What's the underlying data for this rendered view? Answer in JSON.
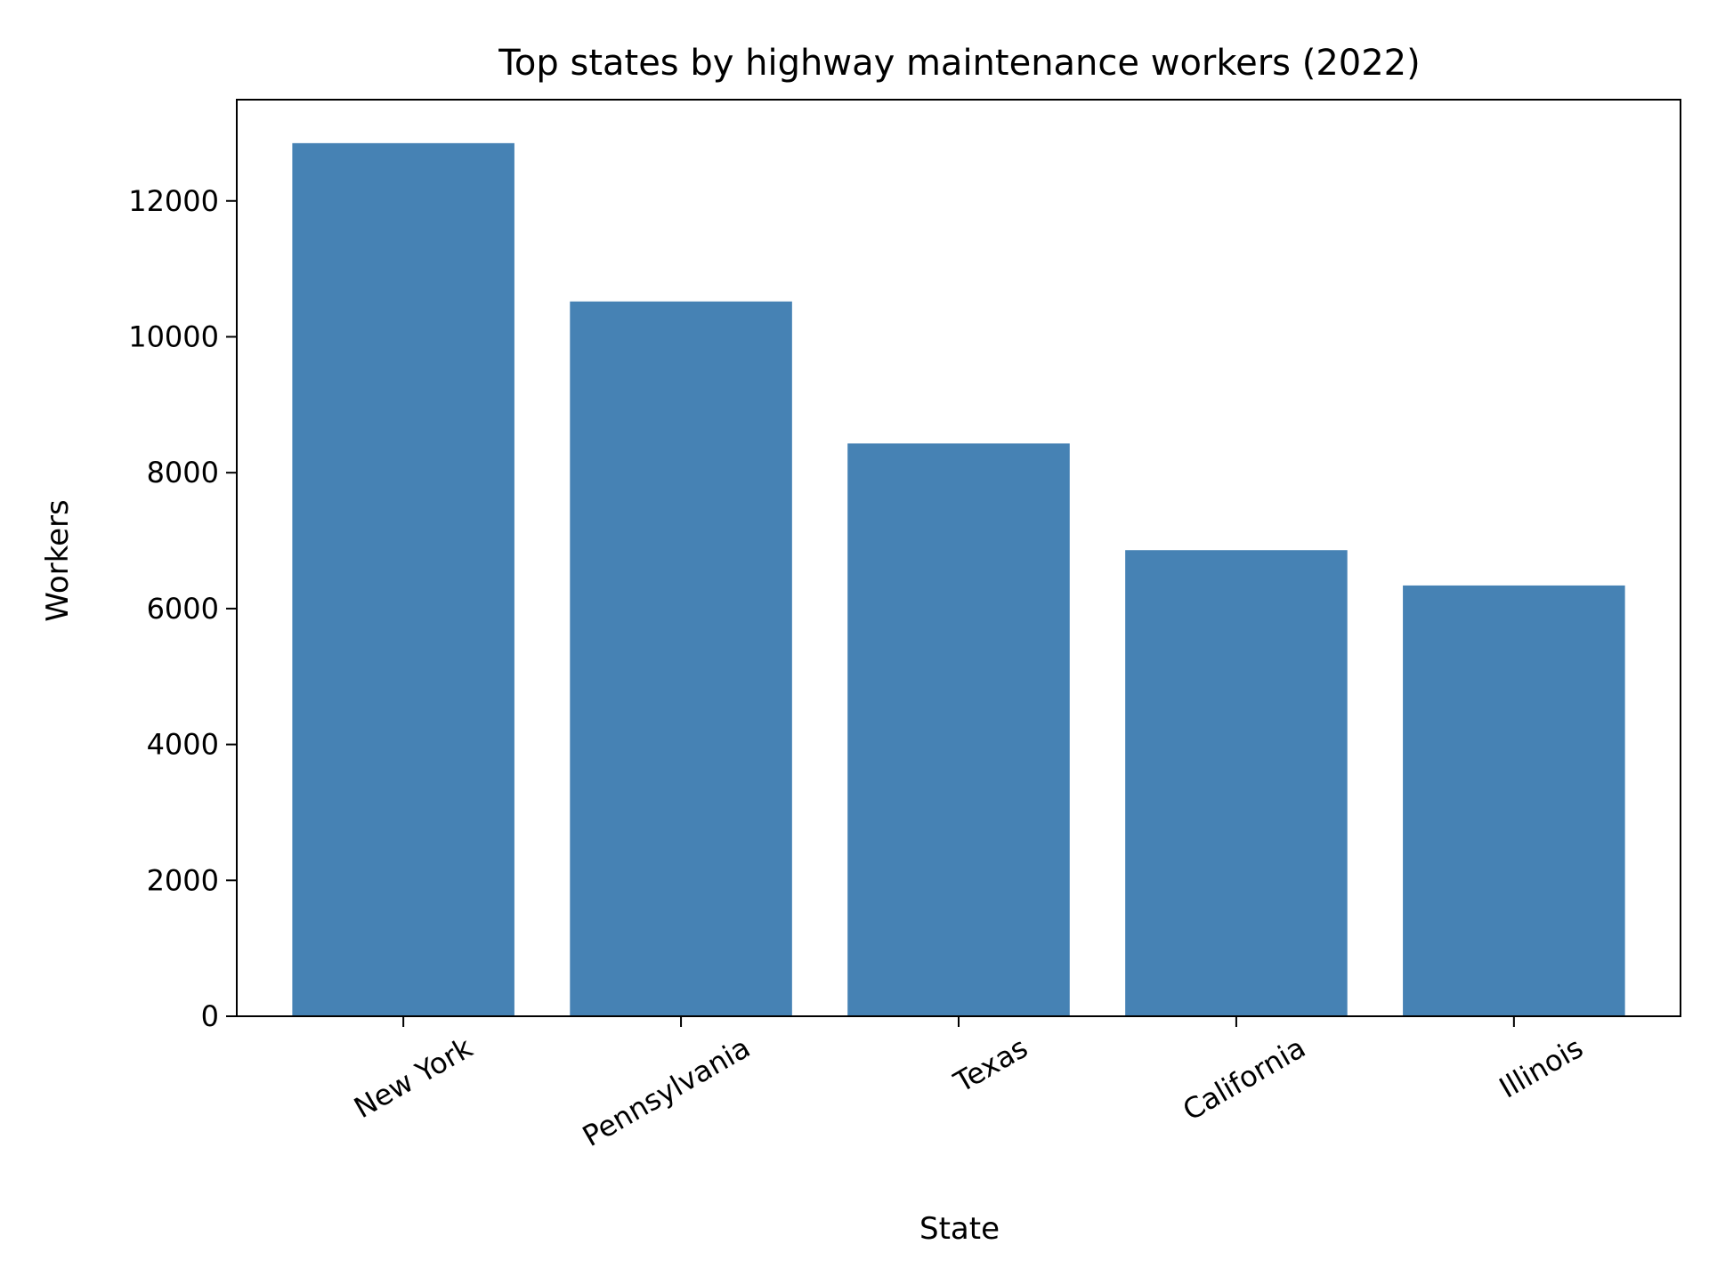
{
  "chart_data": {
    "type": "bar",
    "title": "Top states by highway maintenance workers (2022)",
    "xlabel": "State",
    "ylabel": "Workers",
    "categories": [
      "New York",
      "Pennsylvania",
      "Texas",
      "California",
      "Illinois"
    ],
    "values": [
      12850,
      10520,
      8430,
      6860,
      6340
    ],
    "ylim": [
      0,
      13490
    ],
    "yticks": [
      0,
      2000,
      4000,
      6000,
      8000,
      10000,
      12000
    ],
    "grid": false,
    "legend": "none",
    "colors": {
      "bar": "#4682b4",
      "axis": "#000000",
      "background": "#ffffff"
    }
  }
}
